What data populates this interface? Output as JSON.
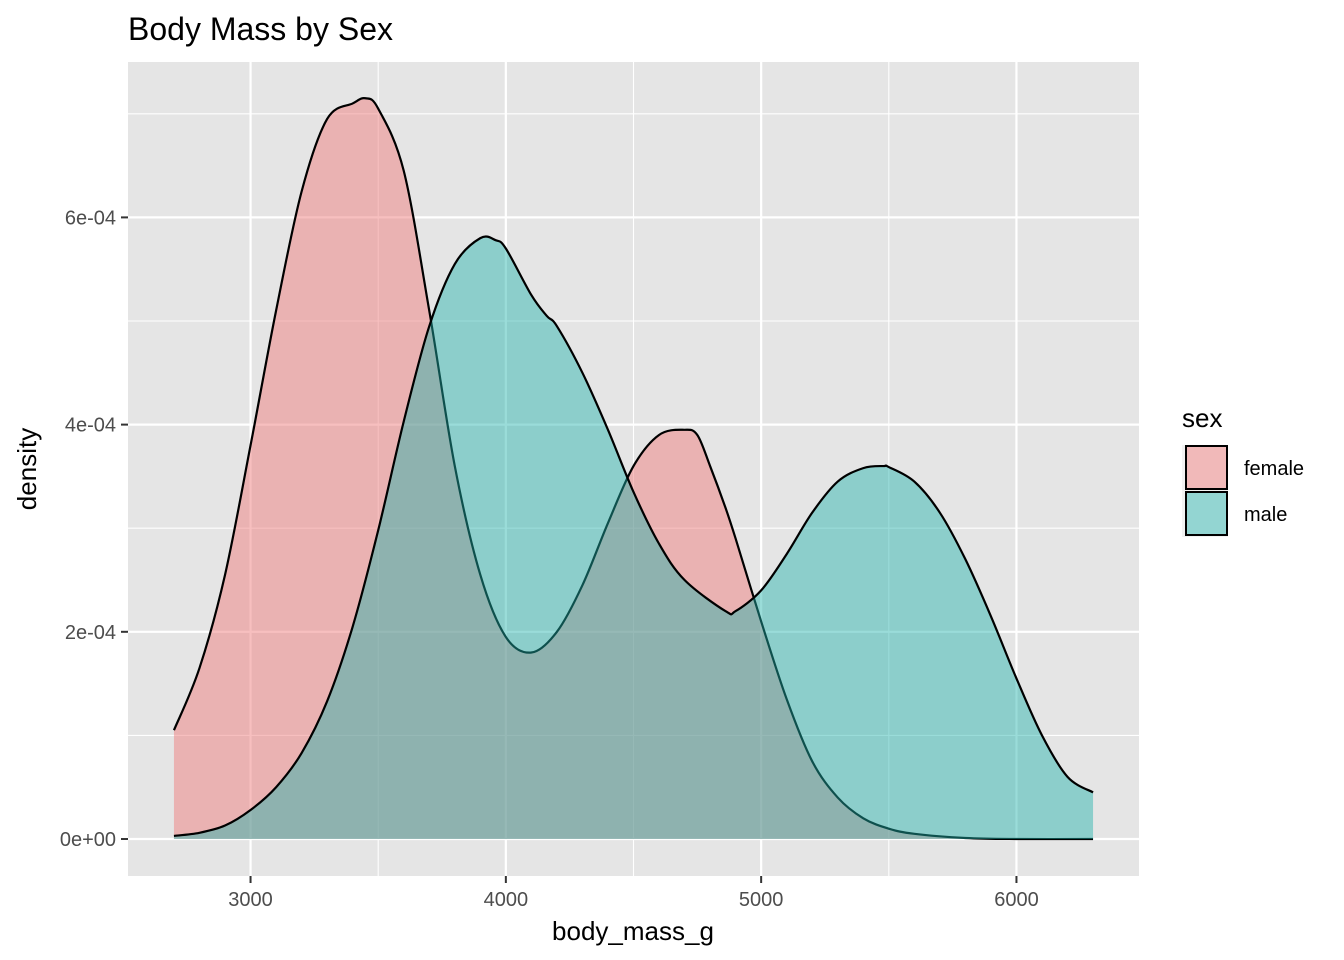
{
  "chart_data": {
    "type": "area",
    "subtype": "density",
    "title": "Body Mass by Sex",
    "xlabel": "body_mass_g",
    "ylabel": "density",
    "xlim": [
      2520,
      6480
    ],
    "ylim": [
      -3.57e-05,
      0.00075
    ],
    "x_ticks": [
      3000,
      4000,
      5000,
      6000
    ],
    "x_tick_labels": [
      "3000",
      "4000",
      "5000",
      "6000"
    ],
    "y_ticks": [
      0,
      0.0002,
      0.0004,
      0.0006
    ],
    "y_tick_labels": [
      "0e+00",
      "2e-04",
      "4e-04",
      "6e-04"
    ],
    "grid": true,
    "panel_background": "#e5e5e5",
    "legend": {
      "title": "sex",
      "position": "right"
    },
    "series": [
      {
        "name": "female",
        "color": "#f08080",
        "fill_opacity": 0.5,
        "x": [
          2700,
          2800,
          2900,
          3000,
          3100,
          3200,
          3300,
          3400,
          3450,
          3500,
          3600,
          3700,
          3800,
          3900,
          4000,
          4100,
          4200,
          4300,
          4400,
          4500,
          4600,
          4700,
          4750,
          4800,
          4860,
          4900,
          5000,
          5100,
          5200,
          5300,
          5400,
          5500,
          5600,
          5800,
          6000,
          6300
        ],
        "y": [
          0.000105,
          0.000165,
          0.000255,
          0.00038,
          0.00051,
          0.000625,
          0.000695,
          0.00071,
          0.000715,
          0.000705,
          0.000645,
          0.00051,
          0.00036,
          0.000255,
          0.000195,
          0.00018,
          0.0002,
          0.000245,
          0.000305,
          0.00036,
          0.00039,
          0.000395,
          0.00039,
          0.00036,
          0.00032,
          0.00029,
          0.00021,
          0.000135,
          7.5e-05,
          4e-05,
          2e-05,
          1e-05,
          5e-06,
          1e-06,
          0,
          0
        ]
      },
      {
        "name": "male",
        "color": "#20b2aa",
        "fill_opacity": 0.45,
        "x": [
          2700,
          2800,
          2900,
          3000,
          3100,
          3200,
          3300,
          3400,
          3500,
          3600,
          3700,
          3800,
          3900,
          3960,
          4000,
          4100,
          4160,
          4200,
          4300,
          4400,
          4500,
          4600,
          4700,
          4860,
          4900,
          5000,
          5100,
          5200,
          5300,
          5400,
          5480,
          5500,
          5600,
          5700,
          5800,
          5900,
          6000,
          6100,
          6200,
          6300
        ],
        "y": [
          3e-06,
          6e-06,
          1.3e-05,
          2.8e-05,
          5e-05,
          8.3e-05,
          0.000133,
          0.000205,
          0.000298,
          0.000403,
          0.000495,
          0.000555,
          0.00058,
          0.000578,
          0.00057,
          0.000525,
          0.000505,
          0.000495,
          0.00045,
          0.000395,
          0.000335,
          0.000285,
          0.00025,
          0.00022,
          0.00022,
          0.00024,
          0.000275,
          0.000315,
          0.000345,
          0.000358,
          0.00036,
          0.000359,
          0.000345,
          0.000315,
          0.00027,
          0.000215,
          0.000155,
          0.0001,
          6e-05,
          4.5e-05
        ]
      }
    ]
  }
}
